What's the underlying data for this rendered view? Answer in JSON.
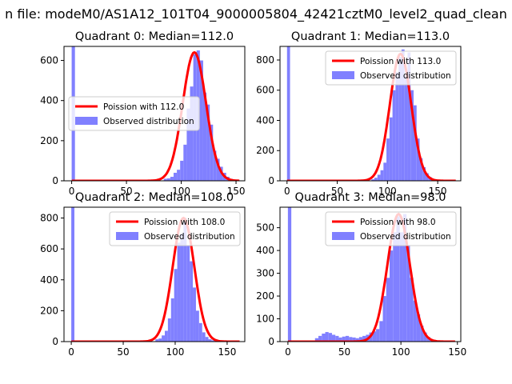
{
  "suptitle": "n file: modeM0/AS1A12_101T04_9000005804_42421cztM0_level2_quad_clean",
  "chart_data": [
    {
      "type": "histogram",
      "title": "Quadrant 0: Median=112.0",
      "xlim": [
        -7,
        158
      ],
      "ylim": [
        0,
        670
      ],
      "xticks": [
        0,
        50,
        100,
        150
      ],
      "yticks": [
        0,
        200,
        400,
        600
      ],
      "legend_position": "center-left",
      "median": 112,
      "bar_color": "#8080ff",
      "curve_color": "#ff0000",
      "series": [
        {
          "name": "Poission with 112.0",
          "type": "line",
          "mean": 112,
          "peak": 640,
          "sigma": 10.6
        },
        {
          "name": "Observed distribution",
          "type": "bar",
          "bin_width": 3,
          "bins": [
            [
              0,
              670
            ],
            [
              60,
              2
            ],
            [
              66,
              3
            ],
            [
              72,
              4
            ],
            [
              78,
              6
            ],
            [
              84,
              10
            ],
            [
              87,
              12
            ],
            [
              90,
              20
            ],
            [
              93,
              40
            ],
            [
              96,
              55
            ],
            [
              99,
              100
            ],
            [
              102,
              180
            ],
            [
              105,
              360
            ],
            [
              108,
              470
            ],
            [
              111,
              630
            ],
            [
              114,
              650
            ],
            [
              117,
              600
            ],
            [
              120,
              440
            ],
            [
              123,
              380
            ],
            [
              126,
              280
            ],
            [
              129,
              150
            ],
            [
              132,
              110
            ],
            [
              135,
              70
            ],
            [
              138,
              40
            ],
            [
              141,
              20
            ],
            [
              144,
              10
            ],
            [
              147,
              6
            ],
            [
              150,
              4
            ]
          ]
        }
      ]
    },
    {
      "type": "histogram",
      "title": "Quadrant 1: Median=113.0",
      "xlim": [
        -7,
        173
      ],
      "ylim": [
        0,
        890
      ],
      "xticks": [
        0,
        50,
        100,
        150
      ],
      "yticks": [
        0,
        200,
        400,
        600,
        800
      ],
      "legend_position": "top-right",
      "median": 113,
      "bar_color": "#8080ff",
      "curve_color": "#ff0000",
      "series": [
        {
          "name": "Poission with 113.0",
          "type": "line",
          "mean": 113,
          "peak": 840,
          "sigma": 10.6
        },
        {
          "name": "Observed distribution",
          "type": "bar",
          "bin_width": 3,
          "bins": [
            [
              0,
              890
            ],
            [
              72,
              3
            ],
            [
              78,
              6
            ],
            [
              84,
              10
            ],
            [
              87,
              20
            ],
            [
              90,
              40
            ],
            [
              93,
              70
            ],
            [
              96,
              120
            ],
            [
              99,
              280
            ],
            [
              102,
              420
            ],
            [
              105,
              600
            ],
            [
              108,
              720
            ],
            [
              111,
              820
            ],
            [
              114,
              870
            ],
            [
              117,
              700
            ],
            [
              120,
              850
            ],
            [
              123,
              600
            ],
            [
              126,
              500
            ],
            [
              129,
              280
            ],
            [
              132,
              150
            ],
            [
              135,
              90
            ],
            [
              138,
              50
            ],
            [
              141,
              25
            ],
            [
              144,
              12
            ],
            [
              147,
              6
            ],
            [
              150,
              3
            ]
          ]
        }
      ]
    },
    {
      "type": "histogram",
      "title": "Quadrant 2: Median=108.0",
      "xlim": [
        -7,
        167
      ],
      "ylim": [
        0,
        870
      ],
      "xticks": [
        0,
        50,
        100,
        150
      ],
      "yticks": [
        0,
        200,
        400,
        600,
        800
      ],
      "legend_position": "top-right",
      "median": 108,
      "bar_color": "#8080ff",
      "curve_color": "#ff0000",
      "series": [
        {
          "name": "Poission with 108.0",
          "type": "line",
          "mean": 108,
          "peak": 800,
          "sigma": 10.4
        },
        {
          "name": "Observed distribution",
          "type": "bar",
          "bin_width": 3,
          "bins": [
            [
              0,
              870
            ],
            [
              63,
              2
            ],
            [
              69,
              4
            ],
            [
              75,
              8
            ],
            [
              81,
              15
            ],
            [
              84,
              20
            ],
            [
              87,
              40
            ],
            [
              90,
              70
            ],
            [
              93,
              150
            ],
            [
              96,
              280
            ],
            [
              99,
              470
            ],
            [
              102,
              640
            ],
            [
              105,
              700
            ],
            [
              108,
              800
            ],
            [
              111,
              620
            ],
            [
              114,
              520
            ],
            [
              117,
              350
            ],
            [
              120,
              200
            ],
            [
              123,
              120
            ],
            [
              126,
              60
            ],
            [
              129,
              30
            ],
            [
              132,
              15
            ],
            [
              135,
              8
            ],
            [
              138,
              4
            ]
          ]
        }
      ]
    },
    {
      "type": "histogram",
      "title": "Quadrant 3: Median=98.0",
      "xlim": [
        -7,
        153
      ],
      "ylim": [
        0,
        590
      ],
      "xticks": [
        0,
        50,
        100,
        150
      ],
      "yticks": [
        0,
        100,
        200,
        300,
        400,
        500
      ],
      "legend_position": "top-right",
      "median": 98,
      "bar_color": "#8080ff",
      "curve_color": "#ff0000",
      "series": [
        {
          "name": "Poission with 98.0",
          "type": "line",
          "mean": 98,
          "peak": 560,
          "sigma": 9.9
        },
        {
          "name": "Observed distribution",
          "type": "bar",
          "bin_width": 3,
          "bins": [
            [
              0,
              590
            ],
            [
              21,
              5
            ],
            [
              24,
              15
            ],
            [
              27,
              25
            ],
            [
              30,
              35
            ],
            [
              33,
              42
            ],
            [
              36,
              38
            ],
            [
              39,
              30
            ],
            [
              42,
              25
            ],
            [
              45,
              18
            ],
            [
              48,
              22
            ],
            [
              51,
              25
            ],
            [
              54,
              20
            ],
            [
              57,
              18
            ],
            [
              60,
              15
            ],
            [
              63,
              20
            ],
            [
              66,
              25
            ],
            [
              69,
              30
            ],
            [
              72,
              40
            ],
            [
              75,
              45
            ],
            [
              78,
              55
            ],
            [
              81,
              90
            ],
            [
              84,
              200
            ],
            [
              87,
              280
            ],
            [
              90,
              400
            ],
            [
              93,
              480
            ],
            [
              96,
              550
            ],
            [
              99,
              480
            ],
            [
              102,
              560
            ],
            [
              105,
              420
            ],
            [
              108,
              280
            ],
            [
              111,
              180
            ],
            [
              114,
              120
            ],
            [
              117,
              70
            ],
            [
              120,
              40
            ],
            [
              123,
              20
            ],
            [
              126,
              10
            ],
            [
              129,
              5
            ],
            [
              132,
              3
            ]
          ]
        }
      ]
    }
  ]
}
